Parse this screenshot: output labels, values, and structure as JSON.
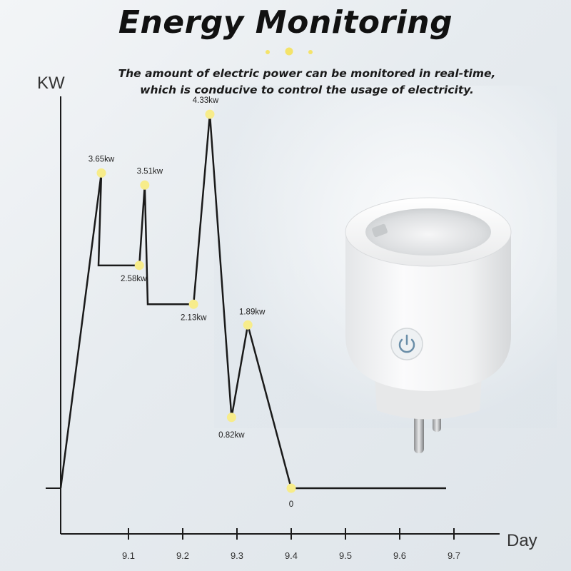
{
  "header": {
    "title": "Energy Monitoring",
    "subtitle_line1": "The amount of electric power can be monitored in real-time,",
    "subtitle_line2": "which is conducive to control the usage of electricity."
  },
  "colors": {
    "point": "#f7ec8a",
    "line": "#1a1a1a",
    "accent_dots": "#f4e36a"
  },
  "product": {
    "icon": "smart-plug-power-button-icon"
  },
  "chart_data": {
    "type": "line",
    "ylabel": "KW",
    "xlabel": "Day",
    "x_ticks": [
      "9.1",
      "9.2",
      "9.3",
      "9.4",
      "9.5",
      "9.6",
      "9.7"
    ],
    "grid": false,
    "points": [
      {
        "x": 9.05,
        "y": 3.65,
        "label": "3.65kw"
      },
      {
        "x": 9.12,
        "y": 2.58,
        "label": "2.58kw"
      },
      {
        "x": 9.13,
        "y": 3.51,
        "label": "3.51kw"
      },
      {
        "x": 9.22,
        "y": 2.13,
        "label": "2.13kw"
      },
      {
        "x": 9.25,
        "y": 4.33,
        "label": "4.33kw"
      },
      {
        "x": 9.29,
        "y": 0.82,
        "label": "0.82kw"
      },
      {
        "x": 9.32,
        "y": 1.89,
        "label": "1.89kw"
      },
      {
        "x": 9.4,
        "y": 0,
        "label": "0"
      }
    ]
  }
}
